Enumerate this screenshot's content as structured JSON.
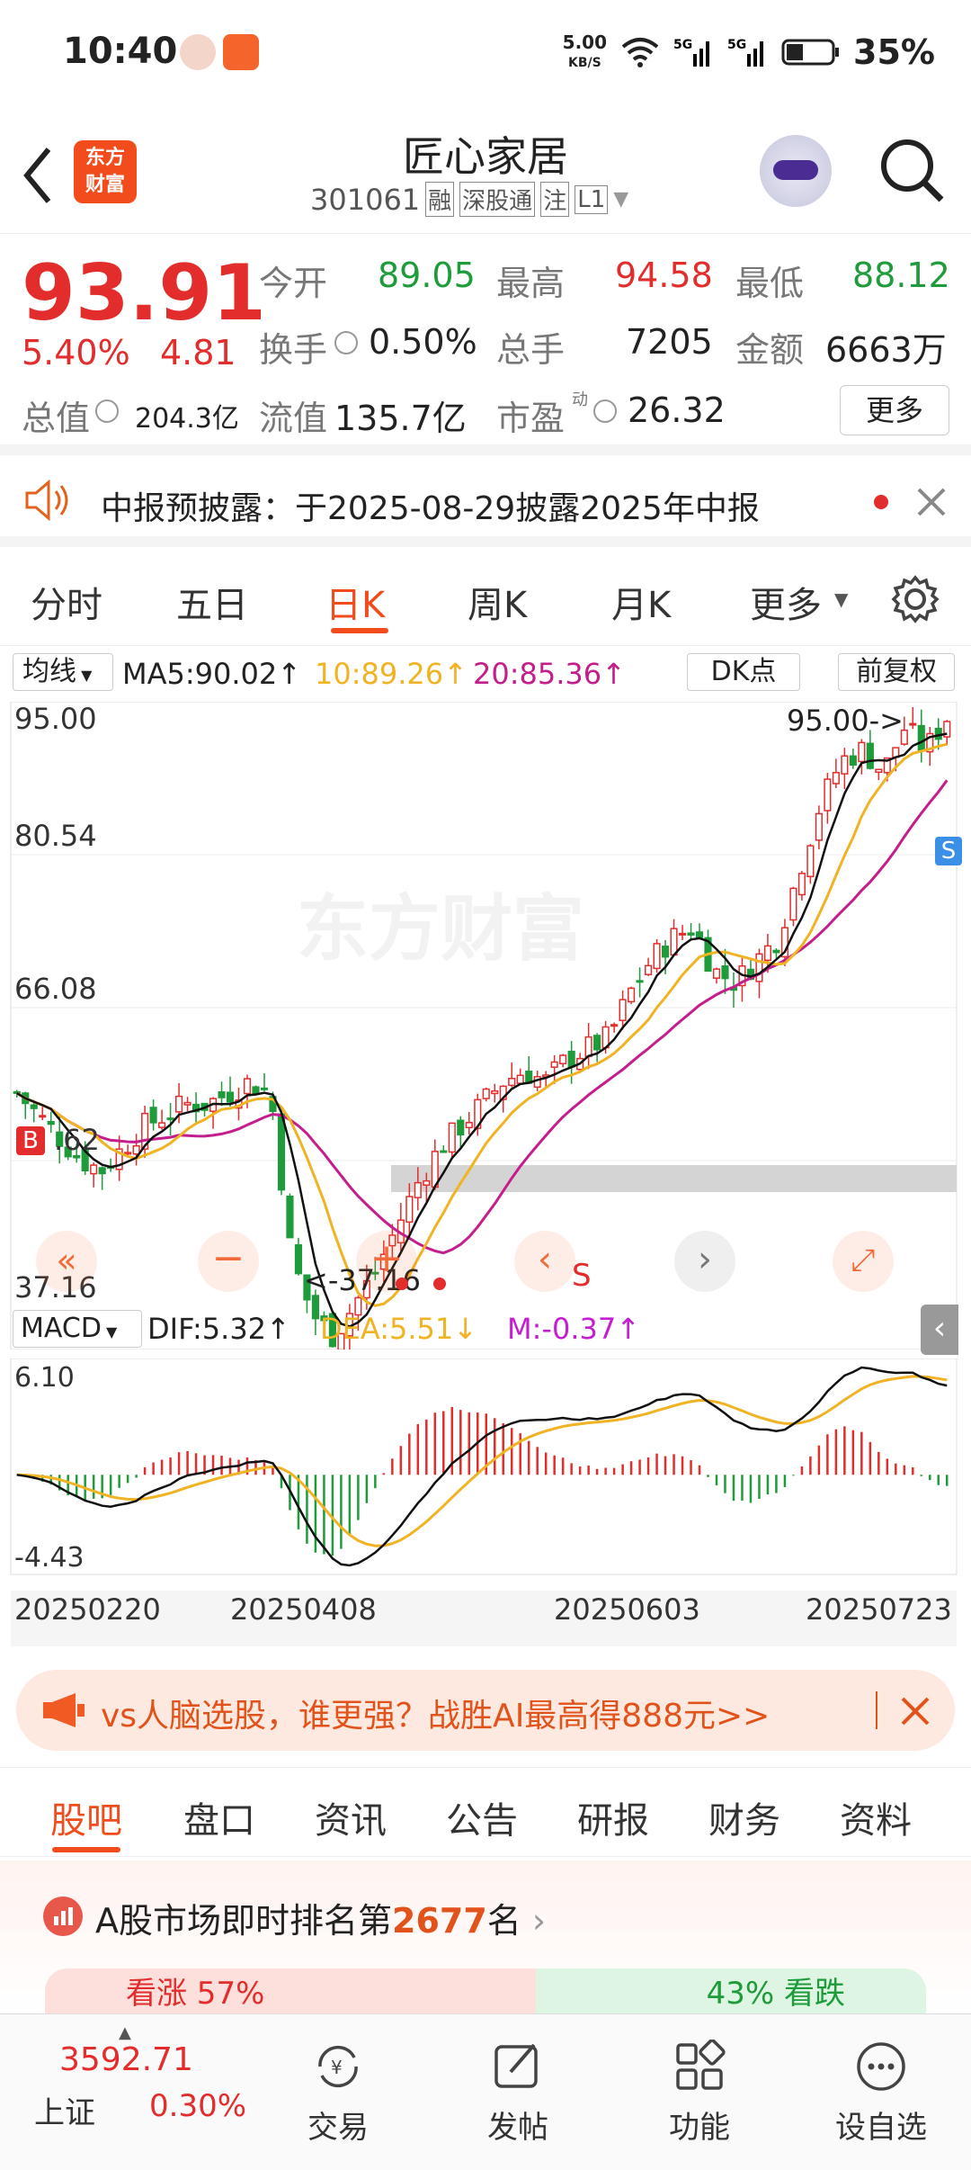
{
  "status": {
    "time": "10:40",
    "net_speed": "5.00",
    "net_unit": "KB/S",
    "battery": "35%"
  },
  "header": {
    "title": "匠心家居",
    "code": "301061",
    "tags": [
      "融",
      "深股通",
      "注",
      "L1"
    ],
    "logo_line1": "东方",
    "logo_line2": "财富"
  },
  "quote": {
    "price": "93.91",
    "change_pct": "5.40%",
    "change": "4.81",
    "open_label": "今开",
    "open": "89.05",
    "high_label": "最高",
    "high": "94.58",
    "low_label": "最低",
    "low": "88.12",
    "turnover_label": "换手",
    "turnover": "0.50%",
    "volume_label": "总手",
    "volume": "7205",
    "amount_label": "金额",
    "amount": "6663万",
    "mktcap_label": "总值",
    "mktcap": "204.3亿",
    "float_label": "流值",
    "float": "135.7亿",
    "pe_label": "市盈",
    "pe_sup": "动",
    "pe": "26.32",
    "more": "更多"
  },
  "notice": {
    "text": "中报预披露：于2025-08-29披露2025年中报"
  },
  "ktabs": [
    "分时",
    "五日",
    "日K",
    "周K",
    "月K",
    "更多"
  ],
  "ma": {
    "select": "均线",
    "ma5": "MA5:90.02↑",
    "ma10": "10:89.26↑",
    "ma20": "20:85.36↑",
    "dk": "DK点",
    "fq": "前复权"
  },
  "price_axis": [
    "95.00",
    "80.54",
    "66.08",
    ".62",
    "37.16"
  ],
  "annotations": {
    "high": "95.00->",
    "low": "<-37.16",
    "buy": "B",
    "sell": "S",
    "sell_mark": "S"
  },
  "macd": {
    "select": "MACD",
    "dif": "DIF:5.32↑",
    "dea": "DEA:5.51↓",
    "m": "M:-0.37↑",
    "top": "6.10",
    "bottom": "-4.43"
  },
  "dates": [
    "20250220",
    "20250408",
    "20250603",
    "20250723"
  ],
  "chart_data": {
    "type": "candlestick",
    "ylim": [
      37.16,
      95.0
    ],
    "close_trend": [
      60,
      58,
      56,
      54,
      53,
      55,
      57,
      58,
      59,
      59,
      60,
      61,
      60,
      45,
      40,
      38,
      41,
      44,
      48,
      52,
      55,
      57,
      59,
      61,
      62,
      61,
      63,
      64,
      65,
      69,
      72,
      74,
      75,
      71,
      70,
      72,
      74,
      80,
      86,
      90,
      91,
      89,
      93,
      91,
      93.91
    ],
    "colors": {
      "up": "#e32c2c",
      "down": "#1e9b3a",
      "ma5": "#111111",
      "ma10": "#f0b323",
      "ma20": "#c41e8c"
    }
  },
  "ad": {
    "text": "vs人脑选股，谁更强？战胜AI最高得888元>>"
  },
  "btabs": [
    "股吧",
    "盘口",
    "资讯",
    "公告",
    "研报",
    "财务",
    "资料"
  ],
  "rank": {
    "prefix": "A股市场即时排名第",
    "num": "2677",
    "suffix": "名",
    "up": "看涨 57%",
    "down": "43% 看跌"
  },
  "bottomnav": {
    "index_value": "3592.71",
    "index_name": "上证",
    "index_pct": "0.30%",
    "items": [
      "交易",
      "发帖",
      "功能",
      "设自选"
    ]
  }
}
